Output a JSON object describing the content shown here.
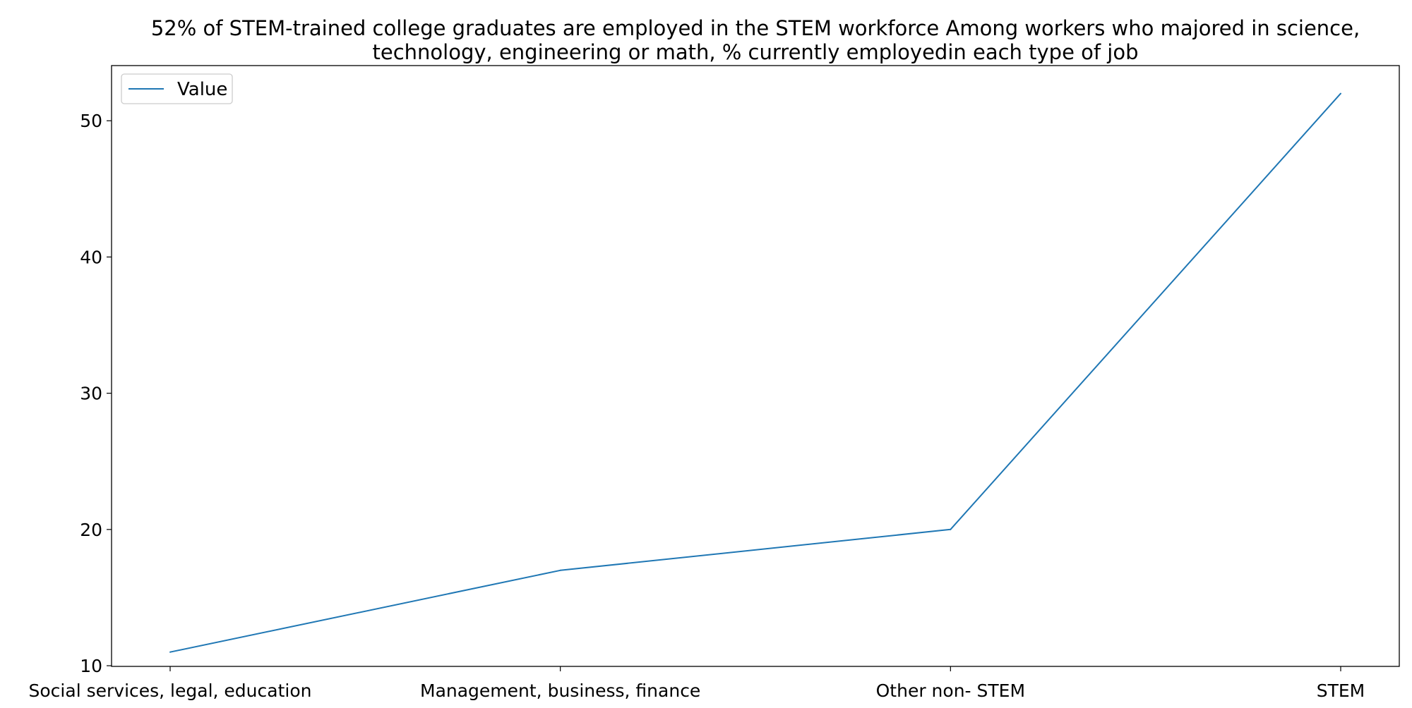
{
  "chart_data": {
    "type": "line",
    "title_lines": [
      "52% of STEM-trained college graduates are employed in the STEM workforce Among workers who majored in science,",
      "technology, engineering or math, % currently employedin each type of job"
    ],
    "categories": [
      "Social services, legal, education",
      "Management, business, finance",
      "Other non- STEM",
      "STEM"
    ],
    "series": [
      {
        "name": "Value",
        "values": [
          11,
          17,
          20,
          52
        ],
        "color": "#1f77b4"
      }
    ],
    "ylim": [
      9.95,
      54.05
    ],
    "yticks": [
      10,
      20,
      30,
      40,
      50
    ],
    "grid": false,
    "legend_position": "top-left"
  }
}
